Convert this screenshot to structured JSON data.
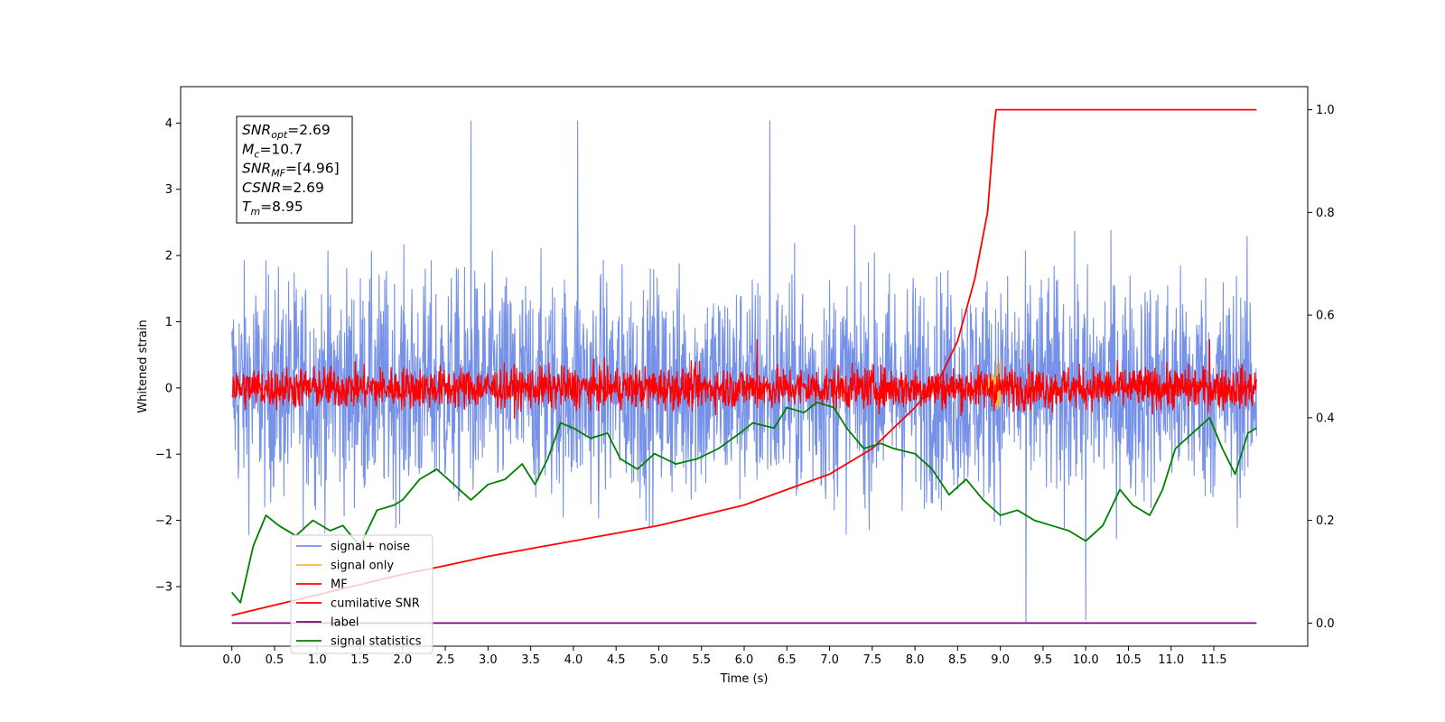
{
  "chart_data": {
    "type": "line",
    "xlabel": "Time (s)",
    "ylabel": "Whitened strain",
    "xlim": [
      -0.6,
      12.6
    ],
    "ylim": [
      -3.9,
      4.55
    ],
    "y2lim": [
      -0.045,
      1.045
    ],
    "xticks": [
      "0.0",
      "0.5",
      "1.0",
      "1.5",
      "2.0",
      "2.5",
      "3.0",
      "3.5",
      "4.0",
      "4.5",
      "5.0",
      "5.5",
      "6.0",
      "6.5",
      "7.0",
      "7.5",
      "8.0",
      "8.5",
      "9.0",
      "9.5",
      "10.0",
      "10.5",
      "11.0",
      "11.5"
    ],
    "yticks": [
      "−3",
      "−2",
      "−1",
      "0",
      "1",
      "2",
      "3",
      "4"
    ],
    "y2ticks": [
      "0.0",
      "0.2",
      "0.4",
      "0.6",
      "0.8",
      "1.0"
    ],
    "annotation": [
      {
        "sym": "SNR",
        "sub": "opt",
        "val": "=2.69"
      },
      {
        "sym": "M",
        "sub": "c",
        "val": "=10.7"
      },
      {
        "sym": "SNR",
        "sub": "MF",
        "val": "=[4.96]"
      },
      {
        "sym": "CSNR",
        "sub": "",
        "val": "=2.69"
      },
      {
        "sym": "T",
        "sub": "m",
        "val": "=8.95"
      }
    ],
    "series": [
      {
        "name": "signal+ noise",
        "color": "#7691e8",
        "axis": "left",
        "kind": "noise",
        "center": 0.0,
        "spread": 1.55,
        "x_range": [
          0,
          12
        ],
        "peaks": [
          {
            "x": 2.8,
            "y": 4.15
          },
          {
            "x": 4.05,
            "y": 4.12
          },
          {
            "x": 6.3,
            "y": 4.1
          },
          {
            "x": 9.3,
            "y": -3.55
          },
          {
            "x": 10.0,
            "y": -3.5
          }
        ]
      },
      {
        "name": "signal only",
        "color": "#f5b94a",
        "axis": "left",
        "kind": "chirp",
        "x_range": [
          8.5,
          9.0
        ],
        "values_sample": [
          [
            8.94,
            -0.5
          ],
          [
            8.95,
            0.1
          ]
        ]
      },
      {
        "name": "MF",
        "color": "#ff0000",
        "axis": "left",
        "kind": "noise",
        "center": 0.0,
        "spread": 0.28,
        "x_range": [
          0,
          12
        ],
        "peaks": [
          {
            "x": 6.15,
            "y": 1.0
          },
          {
            "x": 11.45,
            "y": 0.8
          }
        ]
      },
      {
        "name": "cumilative SNR",
        "color": "#ff0000",
        "axis": "right",
        "kind": "line",
        "x": [
          0.0,
          0.5,
          1.0,
          1.5,
          2.0,
          2.5,
          3.0,
          3.5,
          4.0,
          4.5,
          5.0,
          5.5,
          6.0,
          6.5,
          7.0,
          7.5,
          8.0,
          8.3,
          8.5,
          8.7,
          8.85,
          8.93,
          8.95,
          9.5,
          10.0,
          11.0,
          12.0
        ],
        "y": [
          0.015,
          0.035,
          0.055,
          0.075,
          0.095,
          0.112,
          0.13,
          0.145,
          0.16,
          0.175,
          0.19,
          0.21,
          0.23,
          0.26,
          0.29,
          0.34,
          0.42,
          0.48,
          0.55,
          0.67,
          0.8,
          0.97,
          1.0,
          1.0,
          1.0,
          1.0,
          1.0
        ]
      },
      {
        "name": "label",
        "color": "#800080",
        "axis": "right",
        "kind": "line",
        "x": [
          0.0,
          12.0
        ],
        "y": [
          0.0,
          0.0
        ]
      },
      {
        "name": "signal statistics",
        "color": "#008000",
        "axis": "right",
        "kind": "line",
        "x": [
          0.0,
          0.1,
          0.25,
          0.4,
          0.55,
          0.75,
          0.95,
          1.15,
          1.3,
          1.5,
          1.7,
          1.9,
          2.0,
          2.2,
          2.4,
          2.6,
          2.8,
          3.0,
          3.2,
          3.4,
          3.55,
          3.7,
          3.85,
          4.0,
          4.2,
          4.4,
          4.55,
          4.75,
          4.95,
          5.2,
          5.45,
          5.7,
          5.95,
          6.1,
          6.35,
          6.5,
          6.7,
          6.85,
          7.05,
          7.2,
          7.4,
          7.6,
          7.75,
          8.0,
          8.2,
          8.4,
          8.6,
          8.8,
          9.0,
          9.2,
          9.4,
          9.6,
          9.8,
          10.0,
          10.2,
          10.4,
          10.55,
          10.75,
          10.9,
          11.05,
          11.25,
          11.45,
          11.6,
          11.75,
          11.9,
          12.0
        ],
        "y": [
          0.06,
          0.04,
          0.15,
          0.21,
          0.19,
          0.17,
          0.2,
          0.18,
          0.19,
          0.15,
          0.22,
          0.23,
          0.24,
          0.28,
          0.3,
          0.27,
          0.24,
          0.27,
          0.28,
          0.31,
          0.27,
          0.32,
          0.39,
          0.38,
          0.36,
          0.37,
          0.32,
          0.3,
          0.33,
          0.31,
          0.32,
          0.34,
          0.37,
          0.39,
          0.38,
          0.42,
          0.41,
          0.43,
          0.42,
          0.38,
          0.34,
          0.35,
          0.34,
          0.33,
          0.3,
          0.25,
          0.28,
          0.24,
          0.21,
          0.22,
          0.2,
          0.19,
          0.18,
          0.16,
          0.19,
          0.26,
          0.23,
          0.21,
          0.26,
          0.34,
          0.37,
          0.4,
          0.34,
          0.29,
          0.37,
          0.38
        ]
      }
    ],
    "grid": false,
    "legend": "lower-left"
  }
}
